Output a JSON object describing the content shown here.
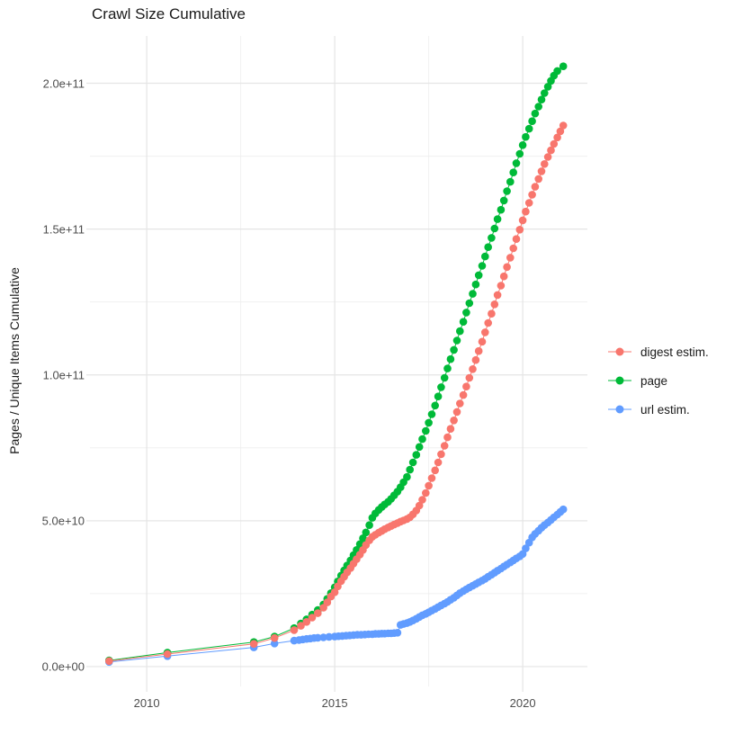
{
  "chart_data": {
    "type": "scatter",
    "title": "Crawl Size Cumulative",
    "xlabel": "",
    "ylabel": "Pages / Unique Items Cumulative",
    "value_unit": "billions (1e9) of pages / unique items",
    "x_axis": {
      "lim": [
        2008.49,
        2021.72
      ],
      "major_ticks": [
        {
          "value": 2010,
          "label": "2010"
        },
        {
          "value": 2015,
          "label": "2015"
        },
        {
          "value": 2020,
          "label": "2020"
        }
      ],
      "minor_ticks": [
        2012.5,
        2017.5
      ]
    },
    "y_axis": {
      "lim": [
        -6.8,
        216.2
      ],
      "major_ticks": [
        {
          "value": 0,
          "label": "0.0e+00"
        },
        {
          "value": 50,
          "label": "5.0e+10"
        },
        {
          "value": 100,
          "label": "1.0e+11"
        },
        {
          "value": 150,
          "label": "1.5e+11"
        },
        {
          "value": 200,
          "label": "2.0e+11"
        }
      ],
      "minor_ticks": [
        25,
        75,
        125,
        175
      ]
    },
    "grid": {
      "major_color": "#e5e5e5",
      "minor_color": "#f0f0f0",
      "background": "#ffffff"
    },
    "legend_position": "right-center",
    "series": [
      {
        "name": "digest estim.",
        "color": "#F8766D",
        "points": [
          [
            2009,
            1.9
          ],
          [
            2010.55,
            4.3
          ],
          [
            2012.85,
            7.8
          ],
          [
            2013.4,
            9.8
          ],
          [
            2013.92,
            12.5
          ],
          [
            2014.1,
            14
          ],
          [
            2014.25,
            15.3
          ],
          [
            2014.4,
            16.8
          ],
          [
            2014.55,
            18.3
          ],
          [
            2014.7,
            20.2
          ],
          [
            2014.8,
            22
          ],
          [
            2014.9,
            24
          ],
          [
            2015,
            25.5
          ],
          [
            2015.08,
            27.5
          ],
          [
            2015.17,
            29.3
          ],
          [
            2015.25,
            30.8
          ],
          [
            2015.33,
            32.3
          ],
          [
            2015.42,
            33.8
          ],
          [
            2015.5,
            35.3
          ],
          [
            2015.58,
            36.8
          ],
          [
            2015.67,
            38.4
          ],
          [
            2015.75,
            40
          ],
          [
            2015.83,
            41.7
          ],
          [
            2015.92,
            43.3
          ],
          [
            2016,
            44.5
          ],
          [
            2016.08,
            45.2
          ],
          [
            2016.17,
            45.9
          ],
          [
            2016.25,
            46.5
          ],
          [
            2016.33,
            47.1
          ],
          [
            2016.42,
            47.7
          ],
          [
            2016.5,
            48.2
          ],
          [
            2016.58,
            48.7
          ],
          [
            2016.67,
            49.2
          ],
          [
            2016.75,
            49.7
          ],
          [
            2016.83,
            50.1
          ],
          [
            2016.92,
            50.6
          ],
          [
            2017,
            51.2
          ],
          [
            2017.08,
            52.2
          ],
          [
            2017.17,
            53.5
          ],
          [
            2017.25,
            55.2
          ],
          [
            2017.33,
            57.2
          ],
          [
            2017.42,
            59.5
          ],
          [
            2017.5,
            62
          ],
          [
            2017.58,
            64.6
          ],
          [
            2017.67,
            67.3
          ],
          [
            2017.75,
            70
          ],
          [
            2017.83,
            72.8
          ],
          [
            2017.92,
            75.7
          ],
          [
            2018,
            78.6
          ],
          [
            2018.08,
            81.5
          ],
          [
            2018.17,
            84.4
          ],
          [
            2018.25,
            87.3
          ],
          [
            2018.33,
            90.2
          ],
          [
            2018.42,
            93.1
          ],
          [
            2018.5,
            96
          ],
          [
            2018.58,
            99
          ],
          [
            2018.67,
            102
          ],
          [
            2018.75,
            105.1
          ],
          [
            2018.83,
            108.2
          ],
          [
            2018.92,
            111.4
          ],
          [
            2019,
            114.6
          ],
          [
            2019.08,
            117.8
          ],
          [
            2019.17,
            121
          ],
          [
            2019.25,
            124.2
          ],
          [
            2019.33,
            127.4
          ],
          [
            2019.42,
            130.6
          ],
          [
            2019.5,
            133.8
          ],
          [
            2019.58,
            137
          ],
          [
            2019.67,
            140.2
          ],
          [
            2019.75,
            143.4
          ],
          [
            2019.83,
            146.6
          ],
          [
            2019.92,
            149.8
          ],
          [
            2020,
            153
          ],
          [
            2020.08,
            156
          ],
          [
            2020.17,
            159
          ],
          [
            2020.25,
            161.8
          ],
          [
            2020.33,
            164.5
          ],
          [
            2020.42,
            167.2
          ],
          [
            2020.5,
            169.8
          ],
          [
            2020.58,
            172.3
          ],
          [
            2020.67,
            174.7
          ],
          [
            2020.75,
            177
          ],
          [
            2020.83,
            179.2
          ],
          [
            2020.92,
            181.4
          ],
          [
            2021,
            183.5
          ],
          [
            2021.08,
            185.5
          ]
        ]
      },
      {
        "name": "page",
        "color": "#00BA38",
        "points": [
          [
            2009,
            2.1
          ],
          [
            2010.55,
            4.8
          ],
          [
            2012.85,
            8.4
          ],
          [
            2013.4,
            10.3
          ],
          [
            2013.92,
            13.2
          ],
          [
            2014.1,
            14.8
          ],
          [
            2014.25,
            16.2
          ],
          [
            2014.4,
            17.8
          ],
          [
            2014.55,
            19.4
          ],
          [
            2014.7,
            21.3
          ],
          [
            2014.8,
            23.2
          ],
          [
            2014.9,
            25.2
          ],
          [
            2015,
            27.2
          ],
          [
            2015.08,
            29.2
          ],
          [
            2015.17,
            31.2
          ],
          [
            2015.25,
            33
          ],
          [
            2015.33,
            34.7
          ],
          [
            2015.42,
            36.4
          ],
          [
            2015.5,
            38.2
          ],
          [
            2015.58,
            40
          ],
          [
            2015.67,
            42
          ],
          [
            2015.75,
            44
          ],
          [
            2015.83,
            46
          ],
          [
            2015.92,
            48.5
          ],
          [
            2016,
            51
          ],
          [
            2016.08,
            52.5
          ],
          [
            2016.17,
            53.7
          ],
          [
            2016.25,
            54.7
          ],
          [
            2016.33,
            55.6
          ],
          [
            2016.42,
            56.5
          ],
          [
            2016.5,
            57.5
          ],
          [
            2016.58,
            58.7
          ],
          [
            2016.67,
            60
          ],
          [
            2016.75,
            61.5
          ],
          [
            2016.83,
            63.2
          ],
          [
            2016.92,
            65
          ],
          [
            2017,
            67.5
          ],
          [
            2017.08,
            70
          ],
          [
            2017.17,
            72.6
          ],
          [
            2017.25,
            75.3
          ],
          [
            2017.33,
            78
          ],
          [
            2017.42,
            80.8
          ],
          [
            2017.5,
            83.6
          ],
          [
            2017.58,
            86.5
          ],
          [
            2017.67,
            89.5
          ],
          [
            2017.75,
            92.6
          ],
          [
            2017.83,
            95.8
          ],
          [
            2017.92,
            99
          ],
          [
            2018,
            102.2
          ],
          [
            2018.08,
            105.4
          ],
          [
            2018.17,
            108.6
          ],
          [
            2018.25,
            111.8
          ],
          [
            2018.33,
            115
          ],
          [
            2018.42,
            118.2
          ],
          [
            2018.5,
            121.4
          ],
          [
            2018.58,
            124.6
          ],
          [
            2018.67,
            127.8
          ],
          [
            2018.75,
            131
          ],
          [
            2018.83,
            134.2
          ],
          [
            2018.92,
            137.4
          ],
          [
            2019,
            140.6
          ],
          [
            2019.08,
            143.8
          ],
          [
            2019.17,
            147
          ],
          [
            2019.25,
            150.2
          ],
          [
            2019.33,
            153.4
          ],
          [
            2019.42,
            156.6
          ],
          [
            2019.5,
            159.8
          ],
          [
            2019.58,
            163
          ],
          [
            2019.67,
            166.2
          ],
          [
            2019.75,
            169.4
          ],
          [
            2019.83,
            172.6
          ],
          [
            2019.92,
            175.8
          ],
          [
            2020,
            178.8
          ],
          [
            2020.08,
            181.6
          ],
          [
            2020.17,
            184.4
          ],
          [
            2020.25,
            187
          ],
          [
            2020.33,
            189.6
          ],
          [
            2020.42,
            192
          ],
          [
            2020.5,
            194.4
          ],
          [
            2020.58,
            196.6
          ],
          [
            2020.67,
            198.8
          ],
          [
            2020.75,
            200.8
          ],
          [
            2020.83,
            202.6
          ],
          [
            2020.92,
            204.2
          ],
          [
            2021.08,
            205.8
          ]
        ]
      },
      {
        "name": "url estim.",
        "color": "#619CFF",
        "points": [
          [
            2009,
            1.6
          ],
          [
            2010.55,
            3.6
          ],
          [
            2012.85,
            6.6
          ],
          [
            2013.4,
            7.9
          ],
          [
            2013.92,
            8.9
          ],
          [
            2014.05,
            9.1
          ],
          [
            2014.15,
            9.3
          ],
          [
            2014.25,
            9.5
          ],
          [
            2014.35,
            9.6
          ],
          [
            2014.45,
            9.8
          ],
          [
            2014.55,
            9.9
          ],
          [
            2014.7,
            10
          ],
          [
            2014.85,
            10.2
          ],
          [
            2015,
            10.3
          ],
          [
            2015.1,
            10.4
          ],
          [
            2015.2,
            10.5
          ],
          [
            2015.3,
            10.6
          ],
          [
            2015.4,
            10.7
          ],
          [
            2015.5,
            10.8
          ],
          [
            2015.6,
            10.9
          ],
          [
            2015.7,
            10.9
          ],
          [
            2015.8,
            11
          ],
          [
            2015.9,
            11.1
          ],
          [
            2016,
            11.1
          ],
          [
            2016.08,
            11.2
          ],
          [
            2016.17,
            11.2
          ],
          [
            2016.25,
            11.3
          ],
          [
            2016.33,
            11.3
          ],
          [
            2016.42,
            11.4
          ],
          [
            2016.5,
            11.4
          ],
          [
            2016.58,
            11.5
          ],
          [
            2016.67,
            11.6
          ],
          [
            2016.75,
            14.3
          ],
          [
            2016.83,
            14.6
          ],
          [
            2016.92,
            14.9
          ],
          [
            2017,
            15.3
          ],
          [
            2017.08,
            15.8
          ],
          [
            2017.17,
            16.4
          ],
          [
            2017.25,
            17
          ],
          [
            2017.33,
            17.6
          ],
          [
            2017.42,
            18.1
          ],
          [
            2017.5,
            18.6
          ],
          [
            2017.58,
            19.2
          ],
          [
            2017.67,
            19.8
          ],
          [
            2017.75,
            20.4
          ],
          [
            2017.83,
            21
          ],
          [
            2017.92,
            21.6
          ],
          [
            2018,
            22.2
          ],
          [
            2018.08,
            22.9
          ],
          [
            2018.17,
            23.6
          ],
          [
            2018.25,
            24.4
          ],
          [
            2018.33,
            25.2
          ],
          [
            2018.42,
            25.9
          ],
          [
            2018.5,
            26.5
          ],
          [
            2018.58,
            27.1
          ],
          [
            2018.67,
            27.7
          ],
          [
            2018.75,
            28.3
          ],
          [
            2018.83,
            28.9
          ],
          [
            2018.92,
            29.5
          ],
          [
            2019,
            30.1
          ],
          [
            2019.08,
            30.8
          ],
          [
            2019.17,
            31.5
          ],
          [
            2019.25,
            32.2
          ],
          [
            2019.33,
            32.9
          ],
          [
            2019.42,
            33.6
          ],
          [
            2019.5,
            34.3
          ],
          [
            2019.58,
            35
          ],
          [
            2019.67,
            35.7
          ],
          [
            2019.75,
            36.4
          ],
          [
            2019.83,
            37.1
          ],
          [
            2019.92,
            37.8
          ],
          [
            2020,
            38.6
          ],
          [
            2020.08,
            40.5
          ],
          [
            2020.17,
            42.5
          ],
          [
            2020.25,
            44.3
          ],
          [
            2020.33,
            45.5
          ],
          [
            2020.42,
            46.6
          ],
          [
            2020.5,
            47.6
          ],
          [
            2020.58,
            48.5
          ],
          [
            2020.67,
            49.4
          ],
          [
            2020.75,
            50.3
          ],
          [
            2020.83,
            51.2
          ],
          [
            2020.92,
            52.1
          ],
          [
            2021,
            53
          ],
          [
            2021.08,
            53.9
          ]
        ]
      }
    ]
  }
}
